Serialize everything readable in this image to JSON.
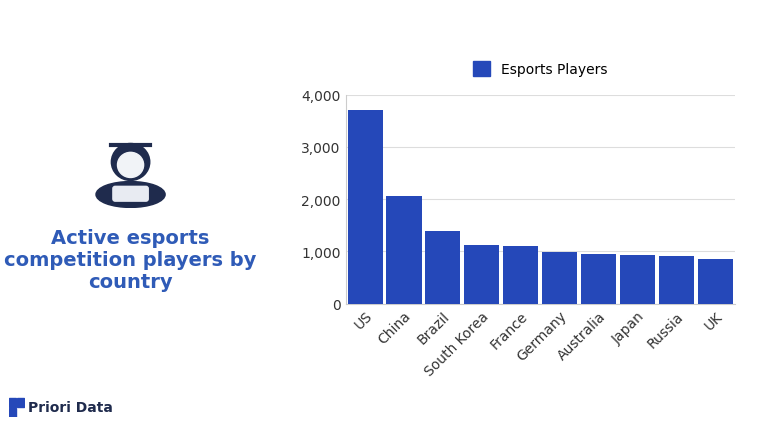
{
  "chart_data": {
    "type": "bar",
    "title": "Active esports competition players by country",
    "annotations": [
      "Priori Data"
    ],
    "categories": [
      "US",
      "China",
      "Brazil",
      "South Korea",
      "France",
      "Germany",
      "Australia",
      "Japan",
      "Russia",
      "UK"
    ],
    "series": [
      {
        "name": "Esports Players",
        "color": "#2548b9",
        "values": [
          3700,
          2050,
          1380,
          1130,
          1100,
          980,
          940,
          930,
          910,
          860
        ]
      }
    ],
    "ylim": [
      0,
      4000
    ],
    "yticks": [
      0,
      {
        "value": 1000,
        "label": "1,000"
      },
      {
        "value": 2000,
        "label": "2,000"
      },
      {
        "value": 3000,
        "label": "3,000"
      },
      {
        "value": 4000,
        "label": "4,000"
      }
    ],
    "grid": true,
    "legend": "upper center"
  }
}
